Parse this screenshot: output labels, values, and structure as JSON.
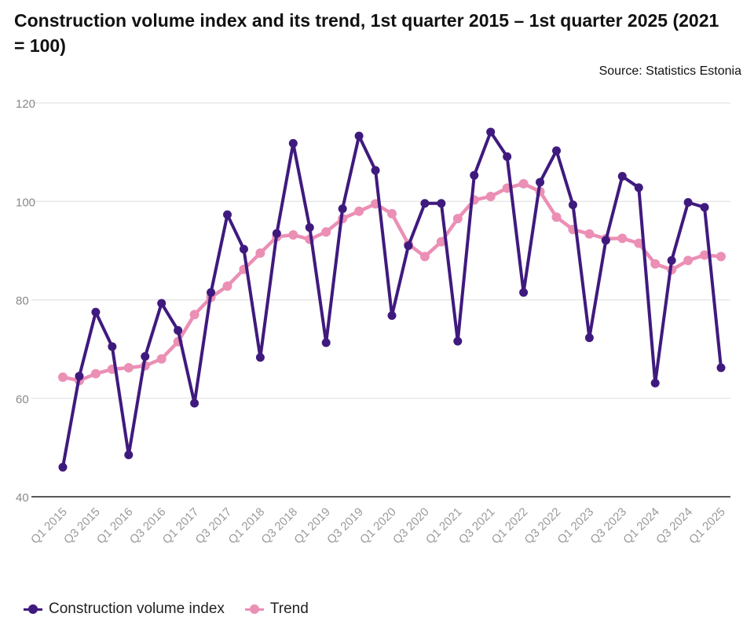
{
  "chart_data": {
    "type": "line",
    "title": "Construction volume index and its trend, 1st quarter 2015 – 1st quarter 2025 (2021 = 100)",
    "source": "Source: Statistics Estonia",
    "xlabel": "",
    "ylabel": "",
    "ylim": [
      40,
      120
    ],
    "yticks": [
      40,
      60,
      80,
      100,
      120
    ],
    "grid": true,
    "legend_position": "bottom-left",
    "tick_labels": [
      "Q1 2015",
      "Q3 2015",
      "Q1 2016",
      "Q3 2016",
      "Q1 2017",
      "Q3 2017",
      "Q1 2018",
      "Q3 2018",
      "Q1 2019",
      "Q3 2019",
      "Q1 2020",
      "Q3 2020",
      "Q1 2021",
      "Q3 2021",
      "Q1 2022",
      "Q3 2022",
      "Q1 2023",
      "Q3 2023",
      "Q1 2024",
      "Q3 2024",
      "Q1 2025"
    ],
    "series": [
      {
        "name": "Construction volume index",
        "color": "#3f1a7e",
        "values": [
          46,
          64.5,
          77.5,
          70.5,
          48.5,
          68.5,
          79.3,
          73.8,
          59,
          81.5,
          97.3,
          90.3,
          68.3,
          93.5,
          111.8,
          94.7,
          71.3,
          98.5,
          113.3,
          106.3,
          76.8,
          91,
          99.6,
          99.6,
          71.6,
          105.3,
          114.1,
          109.1,
          81.5,
          103.9,
          110.3,
          99.3,
          72.3,
          92.1,
          105.1,
          102.8,
          63.1,
          88,
          99.8,
          98.8,
          66.2
        ]
      },
      {
        "name": "Trend",
        "color": "#eb8fb5",
        "values": [
          64.3,
          63.6,
          65,
          65.9,
          66.2,
          66.6,
          68,
          71.5,
          77,
          80.5,
          82.8,
          86.2,
          89.5,
          92.8,
          93.2,
          92.3,
          93.8,
          96.5,
          98,
          99.5,
          97.5,
          91.3,
          88.8,
          91.8,
          96.5,
          100.3,
          101,
          102.7,
          103.6,
          102,
          96.8,
          94.3,
          93.4,
          92.4,
          92.5,
          91.5,
          87.3,
          86.1,
          88,
          89.1,
          88.8
        ]
      }
    ]
  }
}
